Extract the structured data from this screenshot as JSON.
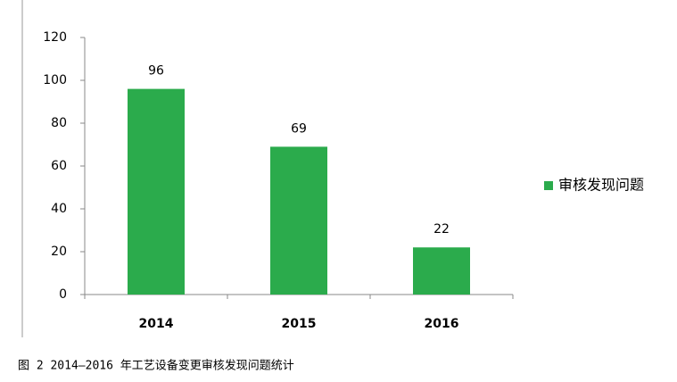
{
  "chart_data": {
    "type": "bar",
    "categories": [
      "2014",
      "2015",
      "2016"
    ],
    "series": [
      {
        "name": "审核发现问题",
        "color": "#2bab4c",
        "values": [
          96,
          69,
          22
        ]
      }
    ],
    "ylim": [
      0,
      120
    ],
    "yticks": [
      0,
      20,
      40,
      60,
      80,
      100,
      120
    ],
    "legend": "right",
    "caption": "图 2 2014—2016 年工艺设备变更审核发现问题统计"
  }
}
